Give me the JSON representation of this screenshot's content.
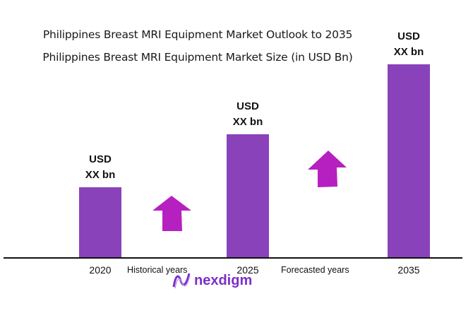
{
  "chart_data": {
    "type": "bar",
    "title": "Philippines Breast MRI Equipment Market Outlook to 2035",
    "subtitle": "Philippines Breast MRI Equipment Market Size (in USD Bn)",
    "categories": [
      "2020",
      "2025",
      "2035"
    ],
    "values_relative": [
      0.365,
      0.64,
      1.0
    ],
    "data_labels": [
      {
        "line1": "USD",
        "line2": "XX bn"
      },
      {
        "line1": "USD",
        "line2": "XX bn"
      },
      {
        "line1": "USD",
        "line2": "XX bn"
      }
    ],
    "period_labels": [
      "Historical years",
      "Forecasted years"
    ],
    "grid": false,
    "legend": "none",
    "colors": {
      "bar": "#8a42bb",
      "arrow": "#b620c0",
      "axis": "#111111"
    }
  },
  "brand": {
    "name": "nexdigm",
    "color": "#7b2fc9"
  }
}
